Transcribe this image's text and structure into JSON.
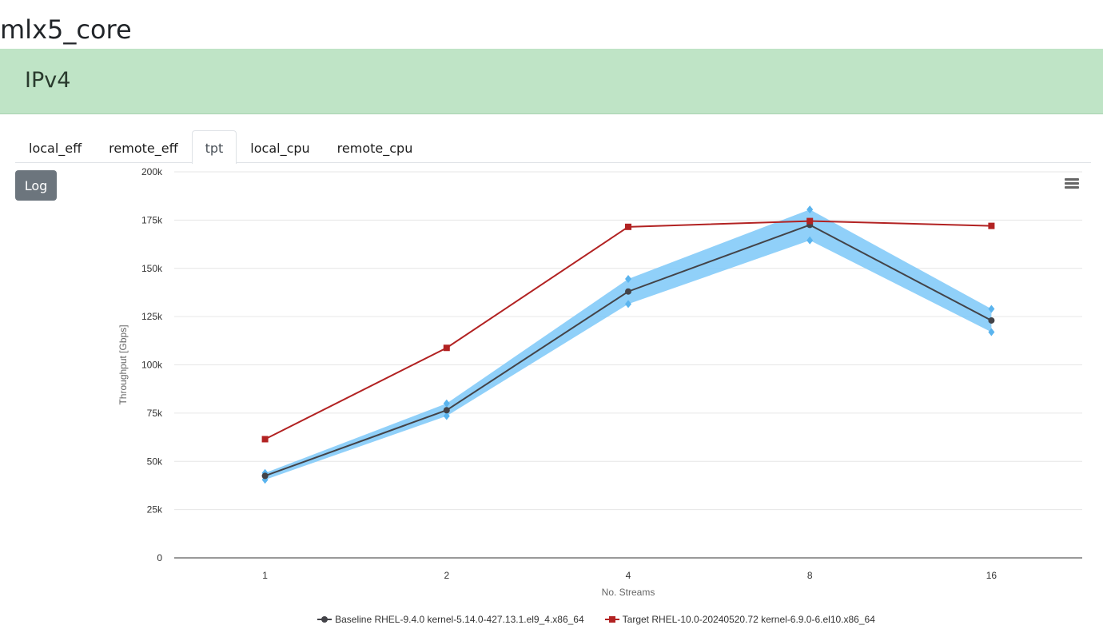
{
  "page": {
    "title": "mlx5_core"
  },
  "banner": {
    "title": "IPv4"
  },
  "tabs": [
    {
      "label": "local_eff",
      "active": false
    },
    {
      "label": "remote_eff",
      "active": false
    },
    {
      "label": "tpt",
      "active": true
    },
    {
      "label": "local_cpu",
      "active": false
    },
    {
      "label": "remote_cpu",
      "active": false
    }
  ],
  "controls": {
    "log_label": "Log",
    "menu_icon": "hamburger-menu-icon"
  },
  "colors": {
    "baseline": "#434348",
    "target": "#b22222",
    "band": "#7cc8f8",
    "band_marker": "#5ab4ee",
    "grid": "#e6e6e6"
  },
  "chart_data": {
    "type": "line",
    "title": "",
    "xlabel": "No. Streams",
    "ylabel": "Throughput [Gbps]",
    "categories": [
      "1",
      "2",
      "4",
      "8",
      "16"
    ],
    "ylim": [
      0,
      200000
    ],
    "yticks": [
      0,
      25000,
      50000,
      75000,
      100000,
      125000,
      150000,
      175000,
      200000
    ],
    "ytick_labels": [
      "0",
      "25k",
      "50k",
      "75k",
      "100k",
      "125k",
      "150k",
      "175k",
      "200k"
    ],
    "series": [
      {
        "name": "Baseline RHEL-9.4.0 kernel-5.14.0-427.13.1.el9_4.x86_64",
        "marker": "circle",
        "values": [
          42500,
          76500,
          138000,
          172500,
          123000
        ],
        "range_low": [
          40500,
          73500,
          131500,
          164500,
          117000
        ],
        "range_high": [
          44000,
          80000,
          144500,
          180500,
          129000
        ]
      },
      {
        "name": "Target RHEL-10.0-20240520.72 kernel-6.9.0-6.el10.x86_64",
        "marker": "square",
        "values": [
          61500,
          108800,
          171500,
          174500,
          172000
        ]
      }
    ],
    "legend_position": "bottom"
  }
}
